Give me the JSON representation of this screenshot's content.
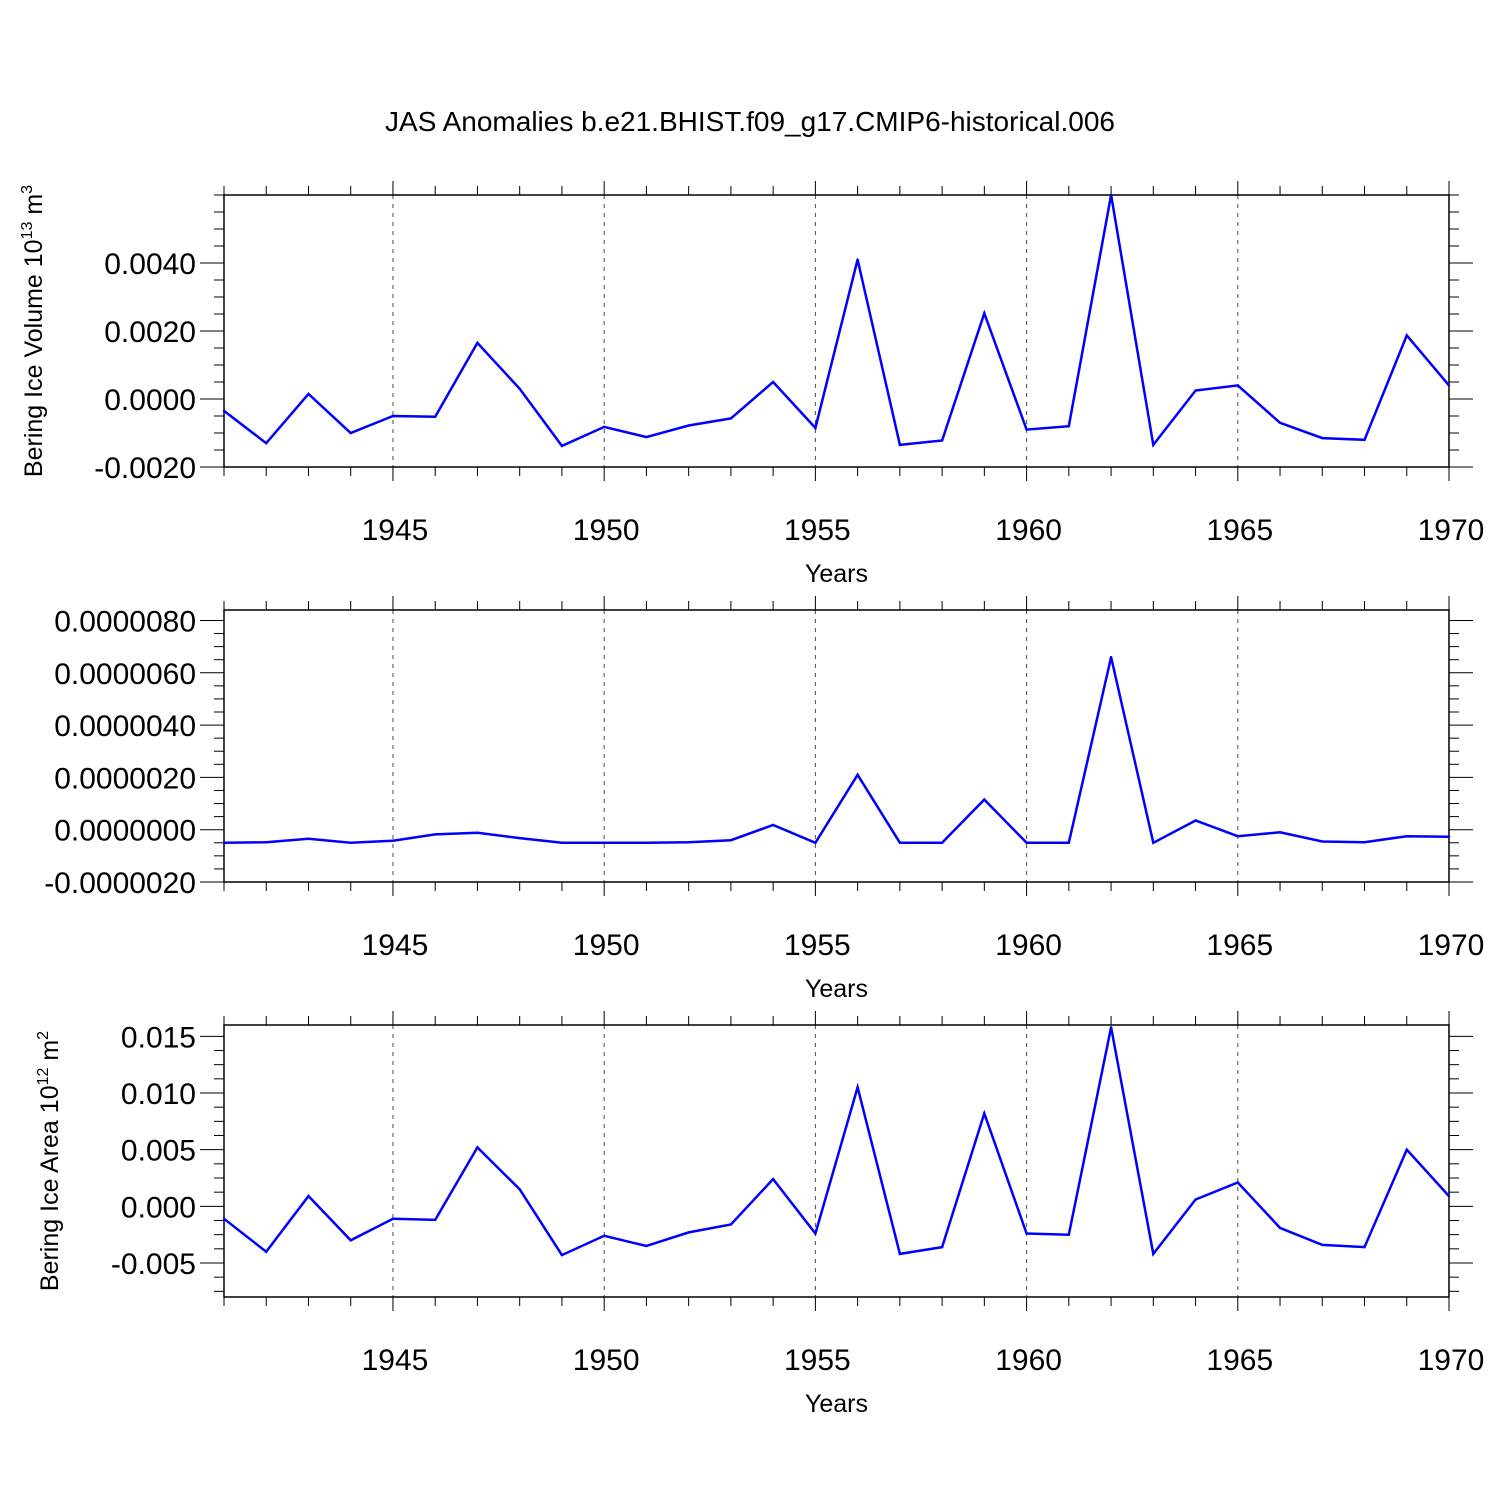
{
  "title": "JAS Anomalies b.e21.BHIST.f09_g17.CMIP6-historical.006",
  "colors": {
    "line": "#0000ff",
    "axis": "#000000",
    "grid": "#000000"
  },
  "chart_data": [
    {
      "type": "line",
      "xlabel": "Years",
      "ylabel_main": "Bering Ice Volume 10",
      "ylabel_exp": "13",
      "ylabel_unit": " m",
      "ylabel_unit_exp": "3",
      "xlim": [
        1941,
        1970
      ],
      "ylim": [
        -0.002,
        0.006
      ],
      "x_ticks": [
        1945,
        1950,
        1955,
        1960,
        1965,
        1970
      ],
      "y_ticks": [
        -0.002,
        0.0,
        0.002,
        0.004
      ],
      "y_tick_labels": [
        "-0.0020",
        "0.0000",
        "0.0020",
        "0.0040"
      ],
      "x": [
        1941,
        1942,
        1943,
        1944,
        1945,
        1946,
        1947,
        1948,
        1949,
        1950,
        1951,
        1952,
        1953,
        1954,
        1955,
        1956,
        1957,
        1958,
        1959,
        1960,
        1961,
        1962,
        1963,
        1964,
        1965,
        1966,
        1967,
        1968,
        1969,
        1970
      ],
      "values": [
        -0.00035,
        -0.0013,
        0.00015,
        -0.001,
        -0.0005,
        -0.00052,
        0.00165,
        0.0003,
        -0.00138,
        -0.00082,
        -0.00112,
        -0.00078,
        -0.00057,
        0.0005,
        -0.00085,
        0.0041,
        -0.00135,
        -0.00122,
        0.00252,
        -0.0009,
        -0.0008,
        0.006,
        -0.00135,
        0.00025,
        0.0004,
        -0.0007,
        -0.00115,
        -0.0012,
        0.00187,
        0.0004
      ]
    },
    {
      "type": "line",
      "xlabel": "Years",
      "ylabel_main": "",
      "ylabel_exp": "",
      "ylabel_unit": "",
      "ylabel_unit_exp": "",
      "xlim": [
        1941,
        1970
      ],
      "ylim": [
        -2e-06,
        8.4e-06
      ],
      "x_ticks": [
        1945,
        1950,
        1955,
        1960,
        1965,
        1970
      ],
      "y_ticks": [
        -2e-06,
        0.0,
        2e-06,
        4e-06,
        6e-06,
        8e-06
      ],
      "y_tick_labels": [
        "-0.0000020",
        "0.0000000",
        "0.0000020",
        "0.0000040",
        "0.0000060",
        "0.0000080"
      ],
      "x": [
        1941,
        1942,
        1943,
        1944,
        1945,
        1946,
        1947,
        1948,
        1949,
        1950,
        1951,
        1952,
        1953,
        1954,
        1955,
        1956,
        1957,
        1958,
        1959,
        1960,
        1961,
        1962,
        1963,
        1964,
        1965,
        1966,
        1967,
        1968,
        1969,
        1970
      ],
      "values": [
        -5e-07,
        -4.8e-07,
        -3.5e-07,
        -5e-07,
        -4.2e-07,
        -1.8e-07,
        -1.2e-07,
        -3.2e-07,
        -5e-07,
        -5e-07,
        -5e-07,
        -4.8e-07,
        -4e-07,
        1.8e-07,
        -5e-07,
        2.1e-06,
        -5e-07,
        -5e-07,
        1.15e-06,
        -5e-07,
        -5e-07,
        6.6e-06,
        -5e-07,
        3.5e-07,
        -2.5e-07,
        -1e-07,
        -4.5e-07,
        -4.8e-07,
        -2.5e-07,
        -2.7e-07
      ]
    },
    {
      "type": "line",
      "xlabel": "Years",
      "ylabel_main": "Bering Ice Area 10",
      "ylabel_exp": "12",
      "ylabel_unit": " m",
      "ylabel_unit_exp": "2",
      "xlim": [
        1941,
        1970
      ],
      "ylim": [
        -0.008,
        0.016
      ],
      "x_ticks": [
        1945,
        1950,
        1955,
        1960,
        1965,
        1970
      ],
      "y_ticks": [
        -0.005,
        0.0,
        0.005,
        0.01,
        0.015
      ],
      "y_tick_labels": [
        "-0.005",
        "0.000",
        "0.005",
        "0.010",
        "0.015"
      ],
      "x": [
        1941,
        1942,
        1943,
        1944,
        1945,
        1946,
        1947,
        1948,
        1949,
        1950,
        1951,
        1952,
        1953,
        1954,
        1955,
        1956,
        1957,
        1958,
        1959,
        1960,
        1961,
        1962,
        1963,
        1964,
        1965,
        1966,
        1967,
        1968,
        1969,
        1970
      ],
      "values": [
        -0.0011,
        -0.004,
        0.0009,
        -0.003,
        -0.0011,
        -0.0012,
        0.0052,
        0.0015,
        -0.0043,
        -0.0026,
        -0.0035,
        -0.0023,
        -0.0016,
        0.0024,
        -0.0024,
        0.0105,
        -0.0042,
        -0.0036,
        0.0082,
        -0.0024,
        -0.0025,
        0.0158,
        -0.0042,
        0.0006,
        0.0021,
        -0.0019,
        -0.0034,
        -0.0036,
        0.005,
        0.0009
      ]
    }
  ]
}
